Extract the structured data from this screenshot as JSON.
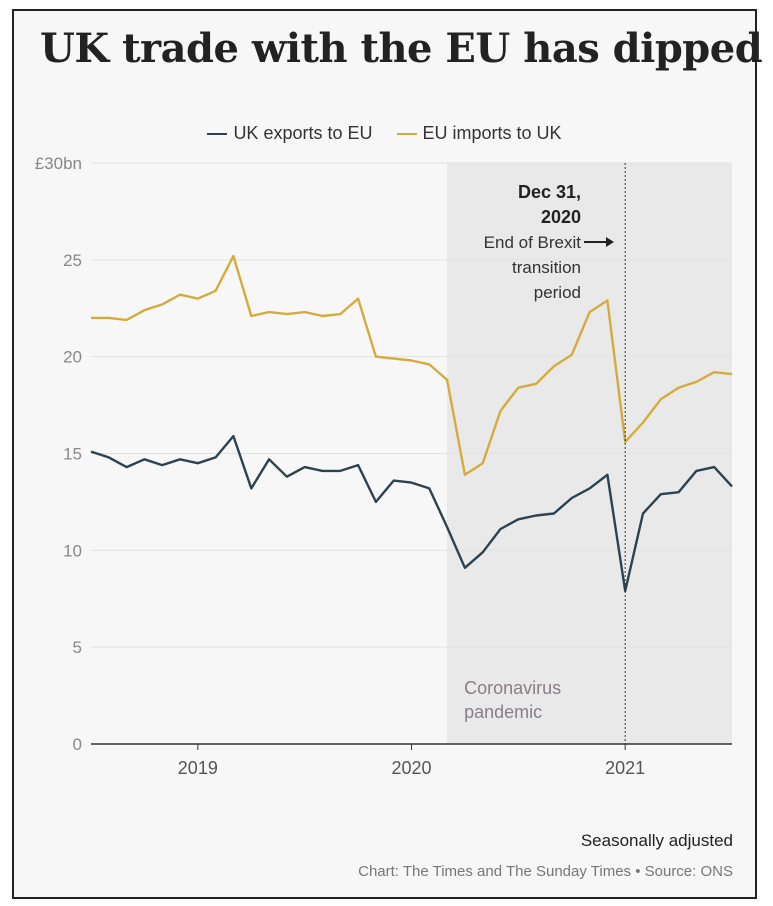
{
  "title": "UK trade with the EU has dipped",
  "footnote": "Seasonally adjusted",
  "source": "Chart: The Times and The Sunday Times • Source: ONS",
  "colors": {
    "exports": "#2c4250",
    "imports": "#d4ac3e",
    "shade": "#e9e9e9",
    "grid": "#e2e2e2",
    "axis": "#333333",
    "tick": "#888888",
    "pandemic_label": "#8a7d86"
  },
  "chart_data": {
    "type": "line",
    "x_type": "date",
    "xlim": [
      "2018-07",
      "2021-07"
    ],
    "x_ticks": [
      "2019",
      "2020",
      "2021"
    ],
    "ylim": [
      0,
      30
    ],
    "y_ticks": [
      0,
      5,
      10,
      15,
      20,
      25,
      30
    ],
    "y_tick_labels": [
      "0",
      "5",
      "10",
      "15",
      "20",
      "25",
      "£30bn"
    ],
    "grid": true,
    "legend_position": "top",
    "x": [
      "2018-07",
      "2018-08",
      "2018-09",
      "2018-10",
      "2018-11",
      "2018-12",
      "2019-01",
      "2019-02",
      "2019-03",
      "2019-04",
      "2019-05",
      "2019-06",
      "2019-07",
      "2019-08",
      "2019-09",
      "2019-10",
      "2019-11",
      "2019-12",
      "2020-01",
      "2020-02",
      "2020-03",
      "2020-04",
      "2020-05",
      "2020-06",
      "2020-07",
      "2020-08",
      "2020-09",
      "2020-10",
      "2020-11",
      "2020-12",
      "2021-01",
      "2021-02",
      "2021-03",
      "2021-04",
      "2021-05",
      "2021-06",
      "2021-07"
    ],
    "series": [
      {
        "name": "UK exports to EU",
        "color": "#2c4250",
        "values": [
          15.1,
          14.8,
          14.3,
          14.7,
          14.4,
          14.7,
          14.5,
          14.8,
          15.9,
          13.2,
          14.7,
          13.8,
          14.3,
          14.1,
          14.1,
          14.4,
          12.5,
          13.6,
          13.5,
          13.2,
          11.2,
          9.1,
          9.9,
          11.1,
          11.6,
          11.8,
          11.9,
          12.7,
          13.2,
          13.9,
          7.9,
          11.9,
          12.9,
          13.0,
          14.1,
          14.3,
          13.3
        ]
      },
      {
        "name": "EU imports to UK",
        "color": "#d4ac3e",
        "values": [
          22.0,
          22.0,
          21.9,
          22.4,
          22.7,
          23.2,
          23.0,
          23.4,
          25.2,
          22.1,
          22.3,
          22.2,
          22.3,
          22.1,
          22.2,
          23.0,
          20.0,
          19.9,
          19.8,
          19.6,
          18.8,
          13.9,
          14.5,
          17.2,
          18.4,
          18.6,
          19.5,
          20.1,
          22.3,
          22.9,
          15.6,
          16.6,
          17.8,
          18.4,
          18.7,
          19.2,
          19.1
        ]
      }
    ],
    "shaded_regions": [
      {
        "from": "2020-03",
        "to": "2021-07",
        "label": [
          "Coronavirus",
          "pandemic"
        ]
      }
    ],
    "annotations": [
      {
        "x": "2021-01",
        "type": "vline",
        "lines": [
          "Dec 31,",
          "2020",
          "End of Brexit",
          "transition",
          "period"
        ]
      }
    ]
  }
}
